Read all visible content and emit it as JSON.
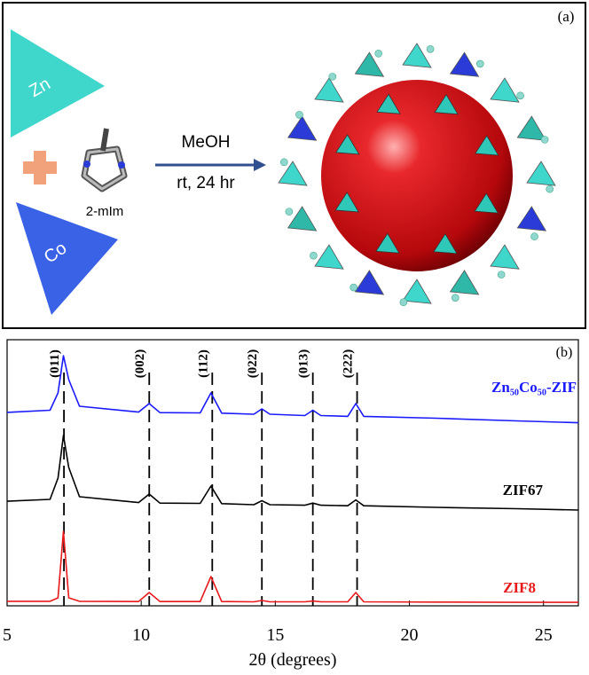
{
  "panel_a": {
    "label": "(a)",
    "metal_1": "Zn",
    "metal_2": "Co",
    "linker": "2-mIm",
    "solvent": "MeOH",
    "conditions": "rt, 24 hr"
  },
  "chart_data": {
    "type": "line",
    "panel_label": "(b)",
    "xlabel": "2θ (degrees)",
    "xlim": [
      5,
      26.3
    ],
    "xticks": [
      5,
      10,
      15,
      20,
      25
    ],
    "ylim": [
      0,
      100
    ],
    "x": [
      5,
      6.6,
      6.9,
      7.1,
      7.3,
      7.7,
      9.9,
      10.3,
      10.7,
      12.2,
      12.6,
      13.0,
      14.2,
      14.5,
      14.8,
      16.1,
      16.4,
      16.7,
      17.7,
      18.0,
      18.3,
      21,
      24,
      26.3
    ],
    "series": [
      {
        "name": "Zn₅₀Co₅₀-ZIF",
        "color": "#1a1aff",
        "values": [
          72.7,
          73.5,
          80,
          94,
          85,
          75,
          72.8,
          76,
          72.6,
          72.5,
          80,
          72.4,
          72,
          74,
          72,
          71.5,
          73.5,
          71.5,
          71.2,
          76,
          71.2,
          70.5,
          69.5,
          68.8
        ]
      },
      {
        "name": "ZIF67",
        "color": "#000000",
        "values": [
          39.3,
          40,
          48,
          64,
          52,
          41,
          38.8,
          42,
          38.6,
          38.5,
          45,
          38.4,
          38,
          39.5,
          38,
          37.8,
          38.6,
          37.8,
          37.6,
          39.8,
          37.6,
          37,
          36.5,
          36
        ]
      },
      {
        "name": "ZIF8",
        "color": "#e8191b",
        "values": [
          1.7,
          1.7,
          3,
          28,
          3,
          1.7,
          1.6,
          5,
          1.6,
          1.6,
          11,
          1.6,
          1.5,
          2,
          1.5,
          1.5,
          1.8,
          1.5,
          1.5,
          5,
          1.5,
          1.4,
          1.3,
          1.3
        ]
      }
    ],
    "reference_lines": [
      {
        "x": 7.12,
        "label": "(011)"
      },
      {
        "x": 10.3,
        "label": "(002)"
      },
      {
        "x": 12.65,
        "label": "(112)"
      },
      {
        "x": 14.5,
        "label": "(022)"
      },
      {
        "x": 16.4,
        "label": "(013)"
      },
      {
        "x": 18.05,
        "label": "(222)"
      }
    ]
  }
}
